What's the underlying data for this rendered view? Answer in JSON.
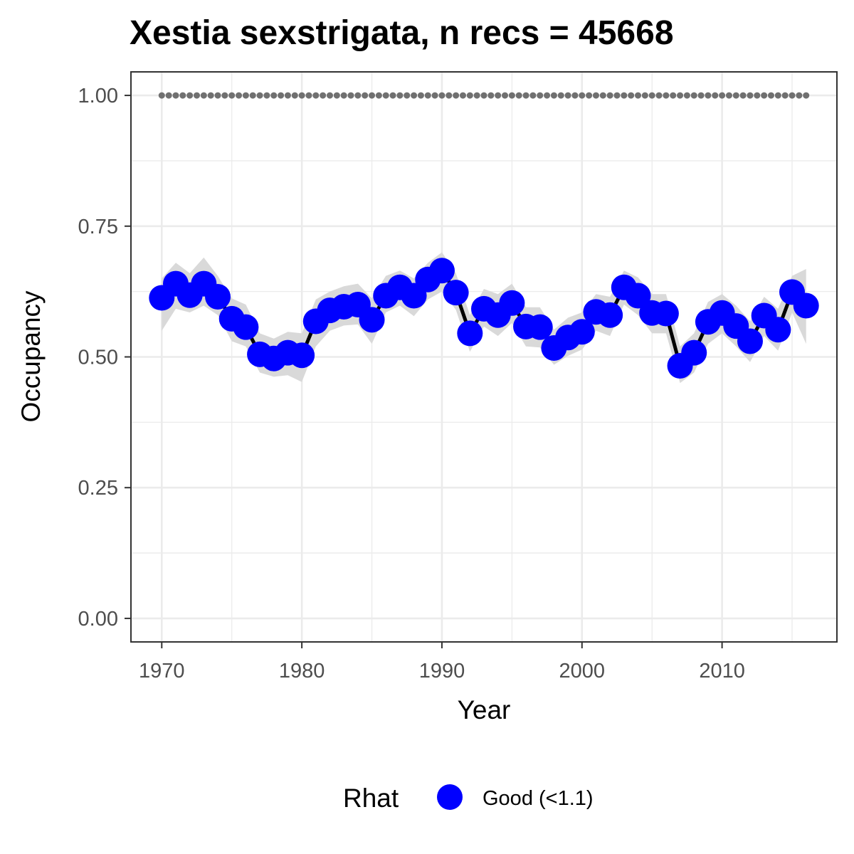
{
  "chart_data": {
    "type": "line",
    "title": "Xestia sexstrigata, n recs = 45668",
    "xlabel": "Year",
    "ylabel": "Occupancy",
    "xlim": [
      1967.8,
      2018.2
    ],
    "ylim": [
      -0.045,
      1.045
    ],
    "xticks": [
      1970,
      1980,
      1990,
      2000,
      2010
    ],
    "yticks": [
      0,
      0.25,
      0.5,
      0.75,
      1.0
    ],
    "ytick_labels": [
      "0.00",
      "0.25",
      "0.50",
      "0.75",
      "1.00"
    ],
    "grid": true,
    "legend_position": "bottom",
    "legend": {
      "title": "Rhat",
      "entries": [
        "Good (<1.1)"
      ]
    },
    "colors": {
      "points": "#0000ff",
      "line": "#000000",
      "ribbon": "#d9d9d9",
      "reference": "#707070",
      "grid": "#ebebeb",
      "panel_border": "#333333"
    },
    "x": [
      1970,
      1971,
      1972,
      1973,
      1974,
      1975,
      1976,
      1977,
      1978,
      1979,
      1980,
      1981,
      1982,
      1983,
      1984,
      1985,
      1986,
      1987,
      1988,
      1989,
      1990,
      1991,
      1992,
      1993,
      1994,
      1995,
      1996,
      1997,
      1998,
      1999,
      2000,
      2001,
      2002,
      2003,
      2004,
      2005,
      2006,
      2007,
      2008,
      2009,
      2010,
      2011,
      2012,
      2013,
      2014,
      2015,
      2016
    ],
    "series": [
      {
        "values": [
          0.613,
          0.64,
          0.618,
          0.64,
          0.615,
          0.573,
          0.557,
          0.505,
          0.497,
          0.508,
          0.503,
          0.568,
          0.589,
          0.596,
          0.6,
          0.571,
          0.617,
          0.633,
          0.617,
          0.648,
          0.665,
          0.623,
          0.545,
          0.592,
          0.58,
          0.603,
          0.558,
          0.557,
          0.517,
          0.537,
          0.548,
          0.586,
          0.58,
          0.633,
          0.617,
          0.584,
          0.583,
          0.483,
          0.508,
          0.567,
          0.584,
          0.559,
          0.53,
          0.579,
          0.552,
          0.624,
          0.598
        ],
        "lower": [
          0.55,
          0.592,
          0.585,
          0.598,
          0.58,
          0.53,
          0.52,
          0.47,
          0.462,
          0.465,
          0.452,
          0.52,
          0.55,
          0.56,
          0.562,
          0.525,
          0.585,
          0.598,
          0.578,
          0.61,
          0.625,
          0.59,
          0.51,
          0.558,
          0.54,
          0.565,
          0.52,
          0.518,
          0.485,
          0.502,
          0.514,
          0.55,
          0.54,
          0.6,
          0.58,
          0.545,
          0.545,
          0.45,
          0.47,
          0.525,
          0.545,
          0.52,
          0.49,
          0.54,
          0.512,
          0.585,
          0.525
        ],
        "upper": [
          0.65,
          0.68,
          0.66,
          0.69,
          0.655,
          0.612,
          0.6,
          0.545,
          0.535,
          0.548,
          0.545,
          0.61,
          0.625,
          0.635,
          0.64,
          0.612,
          0.655,
          0.665,
          0.65,
          0.68,
          0.7,
          0.66,
          0.58,
          0.63,
          0.62,
          0.64,
          0.595,
          0.595,
          0.552,
          0.575,
          0.585,
          0.62,
          0.615,
          0.665,
          0.652,
          0.62,
          0.62,
          0.52,
          0.545,
          0.605,
          0.62,
          0.598,
          0.568,
          0.615,
          0.592,
          0.655,
          0.668
        ]
      }
    ],
    "reference_line": {
      "y": 1.0,
      "style": "dotted"
    }
  }
}
